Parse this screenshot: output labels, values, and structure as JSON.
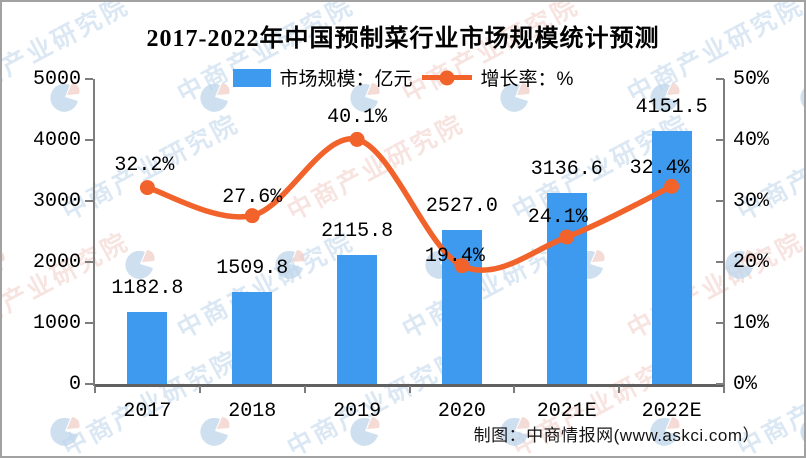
{
  "title": "2017-2022年中国预制菜行业市场规模统计预测",
  "legend": [
    {
      "label": "市场规模：亿元",
      "type": "bar",
      "color": "#3E9AEE"
    },
    {
      "label": "增长率：%",
      "type": "line",
      "color": "#F2622B"
    }
  ],
  "chart_data": {
    "type": "bar+line",
    "categories": [
      "2017",
      "2018",
      "2019",
      "2020",
      "2021E",
      "2022E"
    ],
    "series": [
      {
        "name": "市场规模：亿元",
        "type": "bar",
        "axis": "left",
        "values": [
          1182.8,
          1509.8,
          2115.8,
          2527.0,
          3136.6,
          4151.5
        ],
        "labels": [
          "1182.8",
          "1509.8",
          "2115.8",
          "2527.0",
          "3136.6",
          "4151.5"
        ],
        "color": "#3E9AEE"
      },
      {
        "name": "增长率：%",
        "type": "line",
        "axis": "right",
        "values": [
          32.2,
          27.6,
          40.1,
          19.4,
          24.1,
          32.4
        ],
        "labels": [
          "32.2%",
          "27.6%",
          "40.1%",
          "19.4%",
          "24.1%",
          "32.4%"
        ],
        "color": "#F2622B"
      }
    ],
    "left_axis": {
      "ticks": [
        "0",
        "1000",
        "2000",
        "3000",
        "4000",
        "5000"
      ],
      "min": 0,
      "max": 5000
    },
    "right_axis": {
      "ticks": [
        "0%",
        "10%",
        "20%",
        "30%",
        "40%",
        "50%"
      ],
      "min": 0,
      "max": 50
    },
    "grid": false,
    "legend_position": "top-center"
  },
  "watermark": {
    "text": "中商产业研究院"
  },
  "footer": {
    "text": "制图：中商情报网(www.askci.com）"
  },
  "colors": {
    "bar": "#3E9AEE",
    "line": "#F2622B",
    "axis": "#7d7d7d",
    "text": "#000000",
    "watermark_blue": "#bed6ec",
    "watermark_red": "#f2cfc7",
    "border": "#a2a2a2"
  }
}
